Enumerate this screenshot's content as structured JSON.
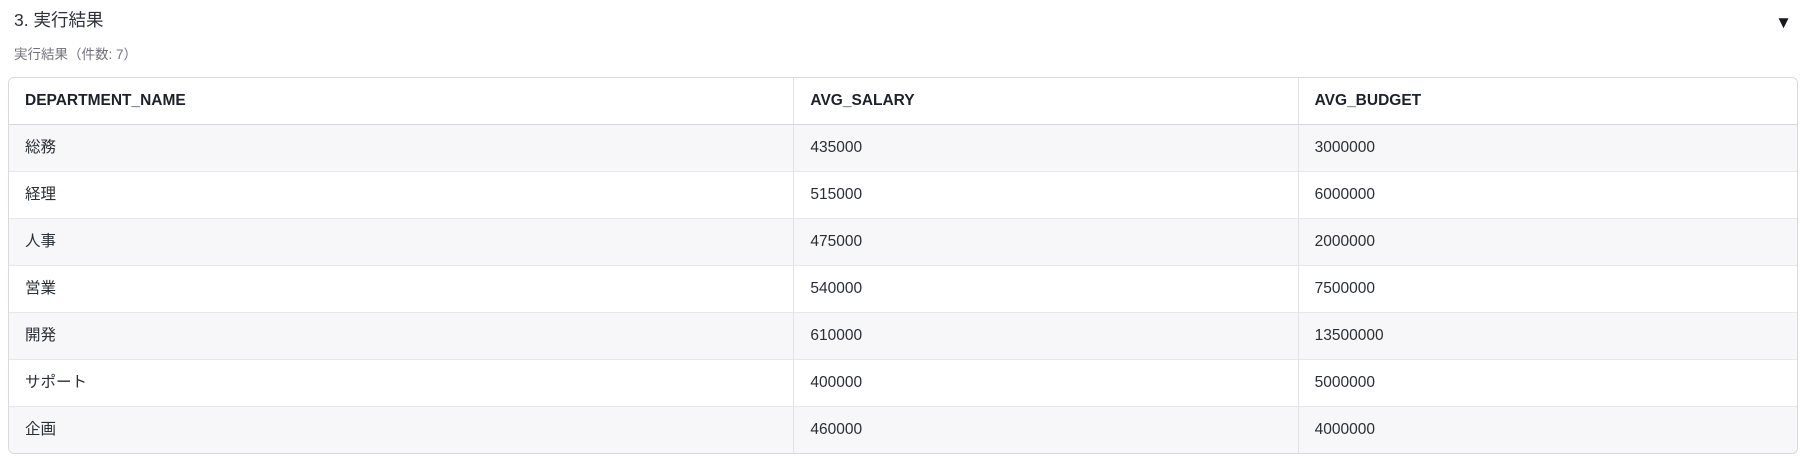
{
  "section": {
    "title": "3. 実行結果",
    "collapse_icon": "▼"
  },
  "result": {
    "caption": "実行結果（件数: 7）",
    "row_count": 7
  },
  "table": {
    "columns": [
      "DEPARTMENT_NAME",
      "AVG_SALARY",
      "AVG_BUDGET"
    ],
    "rows": [
      [
        "総務",
        "435000",
        "3000000"
      ],
      [
        "経理",
        "515000",
        "6000000"
      ],
      [
        "人事",
        "475000",
        "2000000"
      ],
      [
        "営業",
        "540000",
        "7500000"
      ],
      [
        "開発",
        "610000",
        "13500000"
      ],
      [
        "サポート",
        "400000",
        "5000000"
      ],
      [
        "企画",
        "460000",
        "4000000"
      ]
    ]
  },
  "colors": {
    "header_text": "#1d212a",
    "body_text": "#2a2e35",
    "muted_text": "#73737d",
    "border": "#d9d9df",
    "stripe": "#f7f7f9",
    "toggle": "#17181c"
  }
}
